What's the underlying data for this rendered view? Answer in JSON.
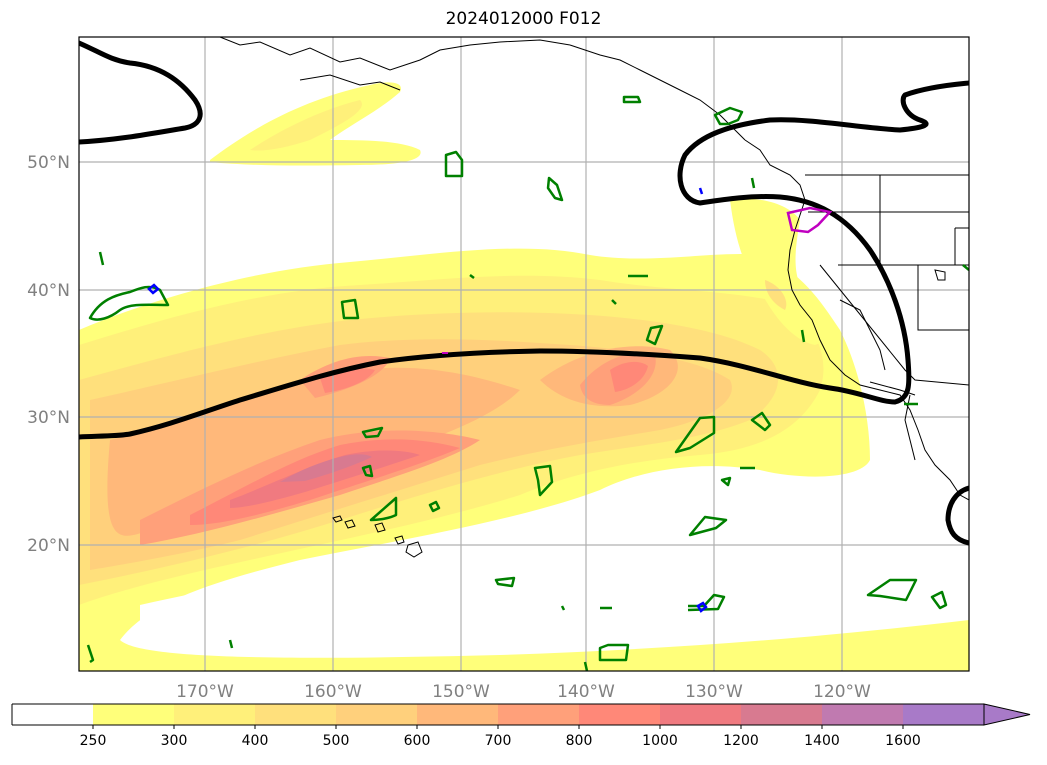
{
  "title": "2024012000 F012",
  "map": {
    "lon_labels": [
      "170°W",
      "160°W",
      "150°W",
      "140°W",
      "130°W",
      "120°W"
    ],
    "lat_labels": [
      "50°N",
      "40°N",
      "30°N",
      "20°N"
    ]
  },
  "colorbar": {
    "levels": [
      "250",
      "300",
      "400",
      "500",
      "600",
      "700",
      "800",
      "1000",
      "1200",
      "1400",
      "1600"
    ],
    "colors": [
      "#ffffff",
      "#ffff7a",
      "#fff07a",
      "#ffe07c",
      "#ffd07c",
      "#ffb87a",
      "#ffa07a",
      "#ff8878",
      "#f07a80",
      "#d87a90",
      "#c07ab0",
      "#a87ac8"
    ],
    "extend": "max"
  },
  "colors": {
    "contour_black": "#000000",
    "contour_green": "#008000",
    "contour_magenta": "#c000c0",
    "contour_blue": "#0000ff",
    "grid": "#b0b0b0"
  }
}
